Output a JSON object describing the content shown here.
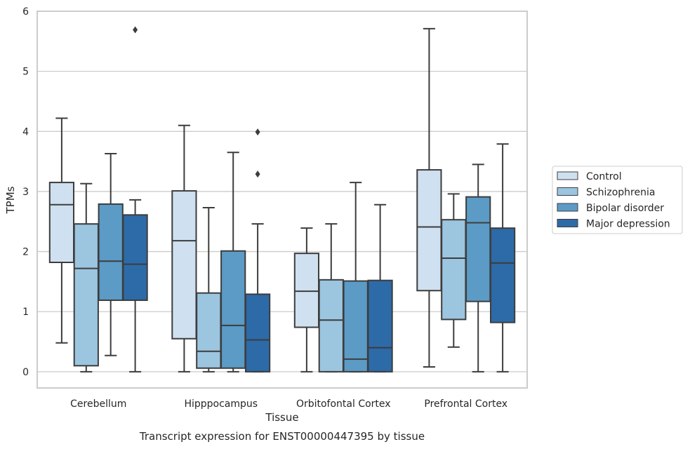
{
  "chart_data": {
    "type": "box",
    "title": "",
    "caption": "Transcript expression for ENST00000447395 by tissue",
    "xlabel": "Tissue",
    "ylabel": "TPMs",
    "ylim": [
      -0.27,
      6.0
    ],
    "yticks": [
      0,
      1,
      2,
      3,
      4,
      5,
      6
    ],
    "grid": "horizontal",
    "legend_position": "right",
    "categories": [
      "Cerebellum",
      "Hipppocampus",
      "Orbitofontal Cortex",
      "Prefrontal Cortex"
    ],
    "series": [
      {
        "name": "Control",
        "color": "#cfe0f0",
        "boxes": [
          {
            "min": 0.48,
            "q1": 1.82,
            "median": 2.78,
            "q3": 3.15,
            "max": 4.22,
            "outliers": []
          },
          {
            "min": 0.0,
            "q1": 0.55,
            "median": 2.18,
            "q3": 3.01,
            "max": 4.1,
            "outliers": []
          },
          {
            "min": 0.0,
            "q1": 0.74,
            "median": 1.34,
            "q3": 1.97,
            "max": 2.39,
            "outliers": []
          },
          {
            "min": 0.08,
            "q1": 1.35,
            "median": 2.41,
            "q3": 3.36,
            "max": 5.71,
            "outliers": []
          }
        ]
      },
      {
        "name": "Schizophrenia",
        "color": "#9cc5df",
        "boxes": [
          {
            "min": 0.0,
            "q1": 0.1,
            "median": 1.72,
            "q3": 2.46,
            "max": 3.13,
            "outliers": []
          },
          {
            "min": 0.0,
            "q1": 0.06,
            "median": 0.34,
            "q3": 1.31,
            "max": 2.73,
            "outliers": []
          },
          {
            "min": 0.0,
            "q1": 0.0,
            "median": 0.86,
            "q3": 1.53,
            "max": 2.46,
            "outliers": []
          },
          {
            "min": 0.41,
            "q1": 0.87,
            "median": 1.89,
            "q3": 2.53,
            "max": 2.96,
            "outliers": []
          }
        ]
      },
      {
        "name": "Bipolar disorder",
        "color": "#5b9bc6",
        "boxes": [
          {
            "min": 0.27,
            "q1": 1.19,
            "median": 1.84,
            "q3": 2.79,
            "max": 3.63,
            "outliers": []
          },
          {
            "min": 0.0,
            "q1": 0.06,
            "median": 0.77,
            "q3": 2.01,
            "max": 3.65,
            "outliers": []
          },
          {
            "min": 0.0,
            "q1": 0.0,
            "median": 0.21,
            "q3": 1.51,
            "max": 3.15,
            "outliers": []
          },
          {
            "min": 0.0,
            "q1": 1.17,
            "median": 2.48,
            "q3": 2.91,
            "max": 3.45,
            "outliers": []
          }
        ]
      },
      {
        "name": "Major depression",
        "color": "#2d6aa8",
        "boxes": [
          {
            "min": 0.0,
            "q1": 1.19,
            "median": 1.79,
            "q3": 2.61,
            "max": 2.86,
            "outliers": [
              5.69
            ]
          },
          {
            "min": 0.0,
            "q1": 0.0,
            "median": 0.53,
            "q3": 1.29,
            "max": 2.46,
            "outliers": [
              3.29,
              3.99
            ]
          },
          {
            "min": 0.0,
            "q1": 0.0,
            "median": 0.4,
            "q3": 1.52,
            "max": 2.78,
            "outliers": []
          },
          {
            "min": 0.0,
            "q1": 0.82,
            "median": 1.81,
            "q3": 2.39,
            "max": 3.79,
            "outliers": []
          }
        ]
      }
    ]
  }
}
